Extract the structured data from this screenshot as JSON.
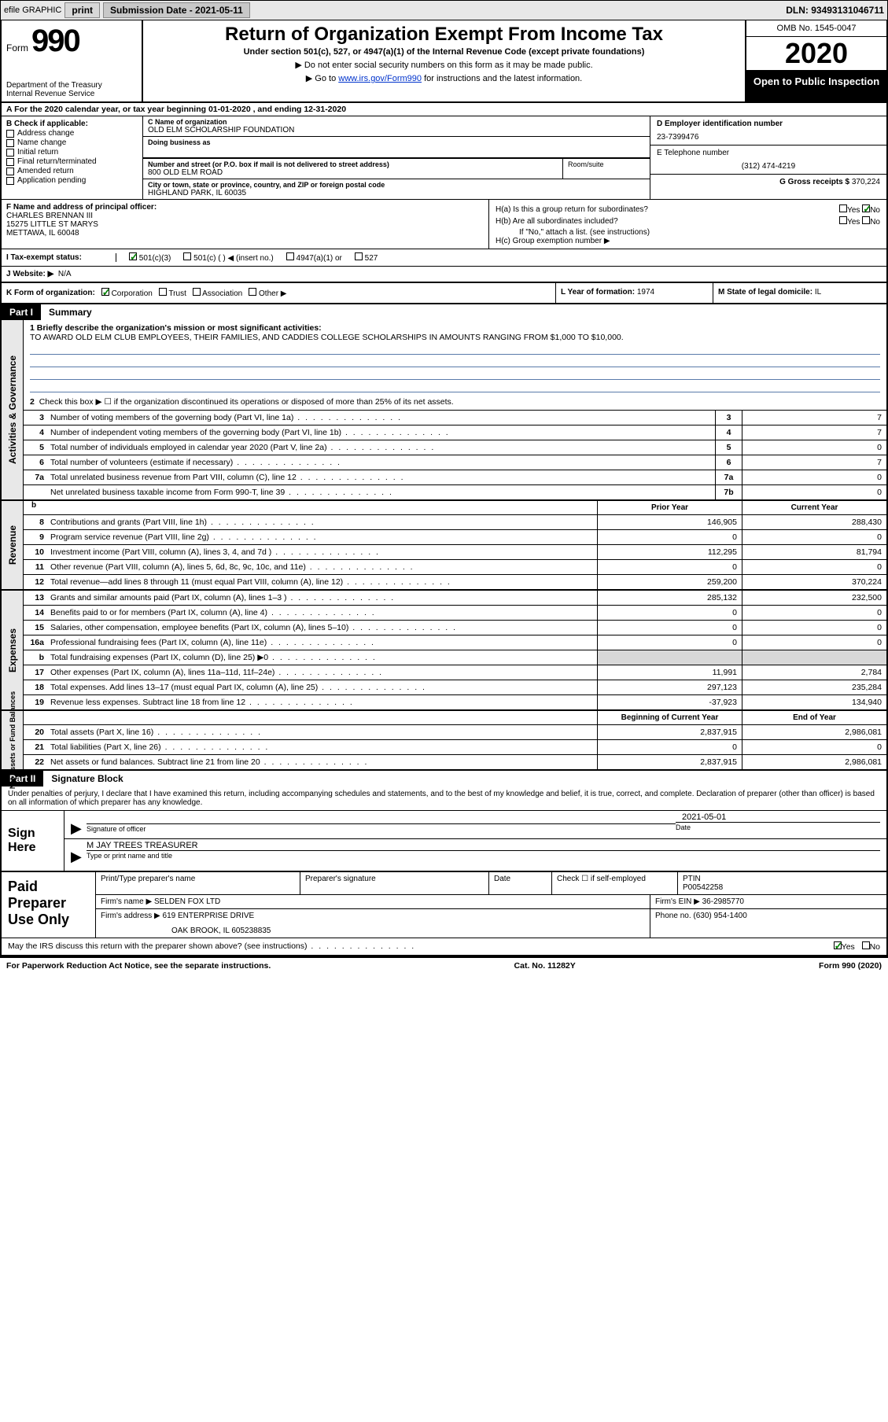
{
  "topbar": {
    "efile": "efile GRAPHIC",
    "print": "print",
    "sub_label": "Submission Date - 2021-05-11",
    "dln": "DLN: 93493131046711"
  },
  "header": {
    "form_label": "Form",
    "form_num": "990",
    "dept": "Department of the Treasury\nInternal Revenue Service",
    "title": "Return of Organization Exempt From Income Tax",
    "sub": "Under section 501(c), 527, or 4947(a)(1) of the Internal Revenue Code (except private foundations)",
    "note1": "▶ Do not enter social security numbers on this form as it may be made public.",
    "note2_pre": "▶ Go to ",
    "note2_link": "www.irs.gov/Form990",
    "note2_post": " for instructions and the latest information.",
    "omb": "OMB No. 1545-0047",
    "year": "2020",
    "open": "Open to Public Inspection"
  },
  "period": "A For the 2020 calendar year, or tax year beginning 01-01-2020    , and ending 12-31-2020",
  "secB": {
    "label": "B Check if applicable:",
    "items": [
      "Address change",
      "Name change",
      "Initial return",
      "Final return/terminated",
      "Amended return",
      "Application pending"
    ]
  },
  "secC": {
    "name_label": "C Name of organization",
    "name": "OLD ELM SCHOLARSHIP FOUNDATION",
    "dba_label": "Doing business as",
    "addr_label": "Number and street (or P.O. box if mail is not delivered to street address)",
    "addr": "800 OLD ELM ROAD",
    "room_label": "Room/suite",
    "city_label": "City or town, state or province, country, and ZIP or foreign postal code",
    "city": "HIGHLAND PARK, IL  60035"
  },
  "secD": {
    "label": "D Employer identification number",
    "val": "23-7399476"
  },
  "secE": {
    "label": "E Telephone number",
    "val": "(312) 474-4219"
  },
  "secG": {
    "label": "G Gross receipts $",
    "val": "370,224"
  },
  "secF": {
    "label": "F  Name and address of principal officer:",
    "name": "CHARLES BRENNAN III",
    "addr1": "15275 LITTLE ST MARYS",
    "addr2": "METTAWA, IL  60048"
  },
  "secH": {
    "a": "H(a)  Is this a group return for subordinates?",
    "b": "H(b)  Are all subordinates included?",
    "bnote": "If \"No,\" attach a list. (see instructions)",
    "c": "H(c)  Group exemption number ▶",
    "yes": "Yes",
    "no": "No"
  },
  "secI": {
    "label": "I  Tax-exempt status:",
    "opts": [
      "501(c)(3)",
      "501(c) (   ) ◀ (insert no.)",
      "4947(a)(1) or",
      "527"
    ]
  },
  "secJ": {
    "label": "J  Website: ▶",
    "val": "N/A"
  },
  "secK": {
    "label": "K Form of organization:",
    "opts": [
      "Corporation",
      "Trust",
      "Association",
      "Other ▶"
    ]
  },
  "secL": {
    "label": "L Year of formation:",
    "val": "1974"
  },
  "secM": {
    "label": "M State of legal domicile:",
    "val": "IL"
  },
  "part1": {
    "label": "Part I",
    "title": "Summary",
    "tab_ag": "Activities & Governance",
    "tab_rev": "Revenue",
    "tab_exp": "Expenses",
    "tab_na": "Net Assets or Fund Balances",
    "l1_label": "1  Briefly describe the organization's mission or most significant activities:",
    "l1_text": "TO AWARD OLD ELM CLUB EMPLOYEES, THEIR FAMILIES, AND CADDIES COLLEGE SCHOLARSHIPS IN AMOUNTS RANGING FROM $1,000 TO $10,000.",
    "l2": "Check this box ▶ ☐  if the organization discontinued its operations or disposed of more than 25% of its net assets.",
    "lines_ag": [
      {
        "n": "3",
        "t": "Number of voting members of the governing body (Part VI, line 1a)",
        "box": "3",
        "v": "7"
      },
      {
        "n": "4",
        "t": "Number of independent voting members of the governing body (Part VI, line 1b)",
        "box": "4",
        "v": "7"
      },
      {
        "n": "5",
        "t": "Total number of individuals employed in calendar year 2020 (Part V, line 2a)",
        "box": "5",
        "v": "0"
      },
      {
        "n": "6",
        "t": "Total number of volunteers (estimate if necessary)",
        "box": "6",
        "v": "7"
      },
      {
        "n": "7a",
        "t": "Total unrelated business revenue from Part VIII, column (C), line 12",
        "box": "7a",
        "v": "0"
      },
      {
        "n": "",
        "t": "Net unrelated business taxable income from Form 990-T, line 39",
        "box": "7b",
        "v": "0"
      }
    ],
    "prior_year": "Prior Year",
    "current_year": "Current Year",
    "lines_rev": [
      {
        "n": "8",
        "t": "Contributions and grants (Part VIII, line 1h)",
        "py": "146,905",
        "cy": "288,430"
      },
      {
        "n": "9",
        "t": "Program service revenue (Part VIII, line 2g)",
        "py": "0",
        "cy": "0"
      },
      {
        "n": "10",
        "t": "Investment income (Part VIII, column (A), lines 3, 4, and 7d )",
        "py": "112,295",
        "cy": "81,794"
      },
      {
        "n": "11",
        "t": "Other revenue (Part VIII, column (A), lines 5, 6d, 8c, 9c, 10c, and 11e)",
        "py": "0",
        "cy": "0"
      },
      {
        "n": "12",
        "t": "Total revenue—add lines 8 through 11 (must equal Part VIII, column (A), line 12)",
        "py": "259,200",
        "cy": "370,224"
      }
    ],
    "lines_exp": [
      {
        "n": "13",
        "t": "Grants and similar amounts paid (Part IX, column (A), lines 1–3 )",
        "py": "285,132",
        "cy": "232,500"
      },
      {
        "n": "14",
        "t": "Benefits paid to or for members (Part IX, column (A), line 4)",
        "py": "0",
        "cy": "0"
      },
      {
        "n": "15",
        "t": "Salaries, other compensation, employee benefits (Part IX, column (A), lines 5–10)",
        "py": "0",
        "cy": "0"
      },
      {
        "n": "16a",
        "t": "Professional fundraising fees (Part IX, column (A), line 11e)",
        "py": "0",
        "cy": "0"
      },
      {
        "n": "b",
        "t": "Total fundraising expenses (Part IX, column (D), line 25) ▶0",
        "py": "",
        "cy": "",
        "grey": true
      },
      {
        "n": "17",
        "t": "Other expenses (Part IX, column (A), lines 11a–11d, 11f–24e)",
        "py": "11,991",
        "cy": "2,784"
      },
      {
        "n": "18",
        "t": "Total expenses. Add lines 13–17 (must equal Part IX, column (A), line 25)",
        "py": "297,123",
        "cy": "235,284"
      },
      {
        "n": "19",
        "t": "Revenue less expenses. Subtract line 18 from line 12",
        "py": "-37,923",
        "cy": "134,940"
      }
    ],
    "boy": "Beginning of Current Year",
    "eoy": "End of Year",
    "lines_na": [
      {
        "n": "20",
        "t": "Total assets (Part X, line 16)",
        "py": "2,837,915",
        "cy": "2,986,081"
      },
      {
        "n": "21",
        "t": "Total liabilities (Part X, line 26)",
        "py": "0",
        "cy": "0"
      },
      {
        "n": "22",
        "t": "Net assets or fund balances. Subtract line 21 from line 20",
        "py": "2,837,915",
        "cy": "2,986,081"
      }
    ]
  },
  "part2": {
    "label": "Part II",
    "title": "Signature Block",
    "perjury": "Under penalties of perjury, I declare that I have examined this return, including accompanying schedules and statements, and to the best of my knowledge and belief, it is true, correct, and complete. Declaration of preparer (other than officer) is based on all information of which preparer has any knowledge.",
    "sign_here": "Sign Here",
    "sig_of_officer": "Signature of officer",
    "date_label": "Date",
    "date_val": "2021-05-01",
    "name_title": "M JAY TREES  TREASURER",
    "name_label": "Type or print name and title",
    "paid": "Paid Preparer Use Only",
    "pt_name_label": "Print/Type preparer's name",
    "pt_sig_label": "Preparer's signature",
    "pt_date_label": "Date",
    "pt_check": "Check ☐ if self-employed",
    "ptin_label": "PTIN",
    "ptin": "P00542258",
    "firm_name_label": "Firm's name    ▶",
    "firm_name": "SELDEN FOX LTD",
    "firm_ein_label": "Firm's EIN ▶",
    "firm_ein": "36-2985770",
    "firm_addr_label": "Firm's address ▶",
    "firm_addr1": "619 ENTERPRISE DRIVE",
    "firm_addr2": "OAK BROOK, IL  605238835",
    "phone_label": "Phone no.",
    "phone": "(630) 954-1400",
    "discuss": "May the IRS discuss this return with the preparer shown above? (see instructions)",
    "yes": "Yes",
    "no": "No"
  },
  "footer": {
    "pra": "For Paperwork Reduction Act Notice, see the separate instructions.",
    "cat": "Cat. No. 11282Y",
    "form": "Form 990 (2020)"
  }
}
